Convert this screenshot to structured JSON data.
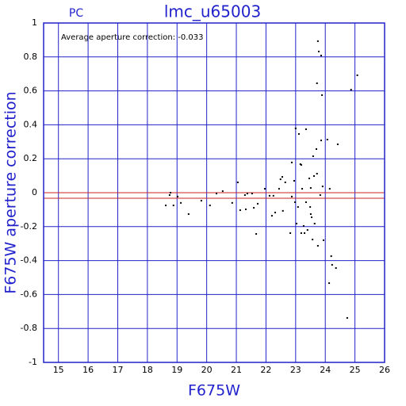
{
  "chart_data": {
    "type": "scatter",
    "title": "lmc_u65003",
    "subtitle": "PC",
    "annotation": "Average aperture correction: -0.033",
    "xlabel": "F675W",
    "ylabel": "F675W aperture correction",
    "xlim": [
      14.5,
      26
    ],
    "ylim": [
      -1,
      1
    ],
    "xticks": [
      15,
      16,
      17,
      18,
      19,
      20,
      21,
      22,
      23,
      24,
      25,
      26
    ],
    "yticks": [
      -1,
      -0.8,
      -0.6,
      -0.4,
      -0.2,
      0,
      0.2,
      0.4,
      0.6,
      0.8,
      1
    ],
    "grid": true,
    "grid_color": "#2222cc",
    "reference_lines": [
      0,
      -0.033
    ],
    "reference_color": "#cc2222",
    "series": [
      {
        "color": "#000000",
        "x": [
          18.62,
          18.75,
          18.78,
          18.88,
          19.02,
          19.13,
          19.39,
          19.82,
          20.11,
          20.33,
          20.54,
          20.86,
          21.05,
          21.13,
          21.29,
          21.32,
          21.37,
          21.53,
          21.59,
          21.67,
          21.72,
          21.96,
          22.12,
          22.2,
          22.25,
          22.31,
          22.44,
          22.49,
          22.55,
          22.57,
          22.65,
          22.82,
          22.87,
          22.87,
          22.95,
          22.98,
          23.0,
          23.03,
          23.08,
          23.11,
          23.16,
          23.19,
          23.19,
          23.22,
          23.27,
          23.3,
          23.35,
          23.35,
          23.4,
          23.46,
          23.49,
          23.51,
          23.51,
          23.54,
          23.57,
          23.59,
          23.62,
          23.64,
          23.7,
          23.72,
          23.72,
          23.75,
          23.75,
          23.78,
          23.83,
          23.86,
          23.86,
          23.89,
          23.91,
          23.94,
          24.07,
          24.15,
          24.13,
          24.2,
          24.23,
          24.36,
          24.42,
          24.74,
          24.87,
          25.08
        ],
        "values": [
          -0.075,
          -0.014,
          0,
          -0.075,
          -0.023,
          -0.06,
          -0.126,
          -0.047,
          -0.075,
          -0.005,
          0.009,
          -0.06,
          0.061,
          -0.103,
          -0.014,
          -0.098,
          -0.005,
          -0.005,
          -0.089,
          -0.243,
          -0.065,
          0.023,
          -0.018,
          -0.136,
          -0.018,
          -0.117,
          0.023,
          0.079,
          0.093,
          -0.107,
          0.061,
          -0.238,
          -0.023,
          0.178,
          0.07,
          -0.056,
          0.379,
          -0.182,
          -0.084,
          0.346,
          0.168,
          0.164,
          -0.238,
          0.023,
          -0.196,
          -0.238,
          0.374,
          -0.056,
          -0.22,
          0.084,
          -0.084,
          0.028,
          -0.126,
          -0.145,
          -0.276,
          0.215,
          0.098,
          -0.182,
          0.257,
          0.112,
          0.645,
          -0.313,
          0.893,
          0.832,
          -0.014,
          0.808,
          0.308,
          0.575,
          0.037,
          -0.28,
          0.313,
          0.023,
          -0.533,
          -0.374,
          -0.425,
          -0.444,
          0.285,
          -0.738,
          0.607,
          0.692
        ]
      }
    ]
  }
}
